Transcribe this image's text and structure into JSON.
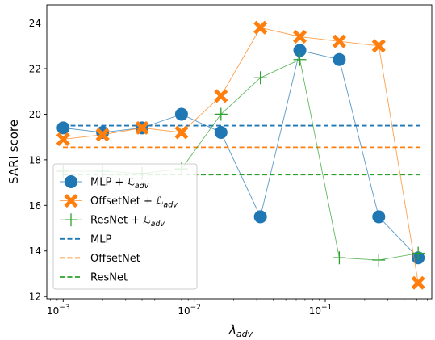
{
  "chart_data": {
    "type": "line",
    "xscale": "log",
    "xlim": [
      0.00075,
      0.65
    ],
    "ylim": [
      11.9,
      24.8
    ],
    "xlabel_base": "λ",
    "xlabel_sub": "adv",
    "ylabel": "SARI score",
    "xticks": [
      {
        "value": 0.001,
        "base": "10",
        "exp": "−3"
      },
      {
        "value": 0.01,
        "base": "10",
        "exp": "−2"
      },
      {
        "value": 0.1,
        "base": "10",
        "exp": "−1"
      }
    ],
    "yticks": [
      12,
      14,
      16,
      18,
      20,
      22,
      24
    ],
    "legend_placement": "lower-left",
    "series": [
      {
        "name": "MLP + ℒadv",
        "name_main": "MLP + ",
        "name_math": "ℒ",
        "name_sub": "adv",
        "kind": "markers-line",
        "marker": "circle",
        "color": "#1f77b4",
        "x": [
          0.001,
          0.002,
          0.004,
          0.008,
          0.016,
          0.032,
          0.064,
          0.128,
          0.256,
          0.512
        ],
        "y": [
          19.4,
          19.2,
          19.4,
          20.0,
          19.2,
          15.5,
          22.8,
          22.4,
          15.5,
          13.7
        ]
      },
      {
        "name": "OffsetNet + ℒadv",
        "name_main": "OffsetNet + ",
        "name_math": "ℒ",
        "name_sub": "adv",
        "kind": "markers-line",
        "marker": "x-filled",
        "color": "#ff7f0e",
        "x": [
          0.001,
          0.002,
          0.004,
          0.008,
          0.016,
          0.032,
          0.064,
          0.128,
          0.256,
          0.512
        ],
        "y": [
          18.9,
          19.1,
          19.4,
          19.2,
          20.8,
          23.8,
          23.4,
          23.2,
          23.0,
          12.6
        ]
      },
      {
        "name": "ResNet + ℒadv",
        "name_main": "ResNet + ",
        "name_math": "ℒ",
        "name_sub": "adv",
        "kind": "markers-line",
        "marker": "plus",
        "color": "#2ca02c",
        "x": [
          0.001,
          0.002,
          0.004,
          0.008,
          0.016,
          0.032,
          0.064,
          0.128,
          0.256,
          0.512
        ],
        "y": [
          17.5,
          17.5,
          17.4,
          17.6,
          20.0,
          21.6,
          22.4,
          13.7,
          13.6,
          13.9
        ]
      },
      {
        "name": "MLP",
        "name_main": "MLP",
        "kind": "hline",
        "color": "#1f77b4",
        "y": 19.5
      },
      {
        "name": "OffsetNet",
        "name_main": "OffsetNet",
        "kind": "hline",
        "color": "#ff7f0e",
        "y": 18.55
      },
      {
        "name": "ResNet",
        "name_main": "ResNet",
        "kind": "hline",
        "color": "#2ca02c",
        "y": 17.35
      }
    ]
  }
}
